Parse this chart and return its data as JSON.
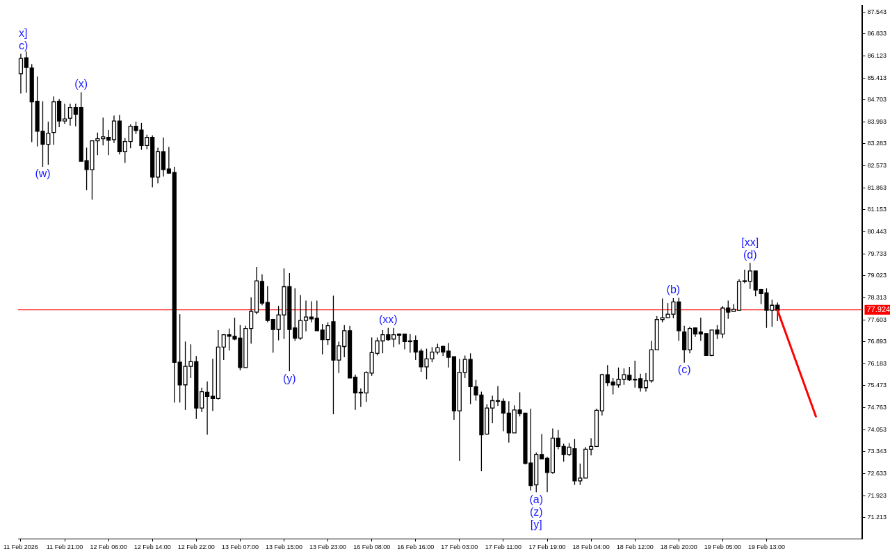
{
  "chart_data": {
    "type": "candlestick",
    "categories": [
      "11 Feb 2026",
      null,
      null,
      null,
      null,
      null,
      null,
      null,
      "11 Feb 21:00",
      null,
      null,
      null,
      null,
      null,
      null,
      null,
      "12 Feb 06:00",
      null,
      null,
      null,
      null,
      null,
      null,
      null,
      "12 Feb 14:00",
      null,
      null,
      null,
      null,
      null,
      null,
      null,
      "12 Feb 22:00",
      null,
      null,
      null,
      null,
      null,
      null,
      null,
      "13 Feb 07:00",
      null,
      null,
      null,
      null,
      null,
      null,
      null,
      "13 Feb 15:00",
      null,
      null,
      null,
      null,
      null,
      null,
      null,
      "13 Feb 23:00",
      null,
      null,
      null,
      null,
      null,
      null,
      null,
      "16 Feb 08:00",
      null,
      null,
      null,
      null,
      null,
      null,
      null,
      "16 Feb 16:00",
      null,
      null,
      null,
      null,
      null,
      null,
      null,
      "17 Feb 03:00",
      null,
      null,
      null,
      null,
      null,
      null,
      null,
      "17 Feb 11:00",
      null,
      null,
      null,
      null,
      null,
      null,
      null,
      "17 Feb 19:00",
      null,
      null,
      null,
      null,
      null,
      null,
      null,
      "18 Feb 04:00",
      null,
      null,
      null,
      null,
      null,
      null,
      null,
      "18 Feb 12:00",
      null,
      null,
      null,
      null,
      null,
      null,
      null,
      "18 Feb 20:00",
      null,
      null,
      null,
      null,
      null,
      null,
      null,
      "19 Feb 05:00",
      null,
      null,
      null,
      null,
      null,
      null,
      null,
      "19 Feb 13:00",
      null,
      null,
      null,
      null,
      null,
      null,
      null,
      null,
      null,
      null,
      null,
      null,
      null,
      null,
      null,
      null,
      null
    ],
    "ohlc": [
      [
        85.55,
        86.19,
        84.91,
        86.04
      ],
      [
        86.06,
        86.26,
        84.93,
        85.75
      ],
      [
        85.73,
        85.86,
        83.34,
        84.64
      ],
      [
        84.66,
        85.46,
        83.2,
        83.69
      ],
      [
        83.69,
        84.66,
        82.54,
        83.27
      ],
      [
        83.27,
        84.0,
        82.61,
        83.62
      ],
      [
        83.65,
        84.82,
        83.25,
        84.64
      ],
      [
        84.66,
        84.73,
        83.82,
        84.02
      ],
      [
        84.02,
        84.58,
        83.93,
        84.09
      ],
      [
        84.11,
        84.58,
        83.87,
        84.46
      ],
      [
        84.46,
        84.58,
        83.85,
        84.24
      ],
      [
        84.46,
        84.95,
        82.72,
        82.72
      ],
      [
        82.74,
        83.16,
        81.79,
        82.45
      ],
      [
        82.45,
        83.4,
        81.48,
        83.38
      ],
      [
        83.38,
        83.65,
        82.92,
        83.45
      ],
      [
        83.45,
        84.13,
        83.23,
        83.51
      ],
      [
        83.49,
        83.73,
        82.92,
        83.4
      ],
      [
        83.42,
        84.2,
        83.31,
        84.02
      ],
      [
        84.02,
        84.22,
        82.94,
        83.03
      ],
      [
        83.03,
        83.47,
        82.67,
        83.36
      ],
      [
        83.36,
        83.91,
        83.14,
        83.85
      ],
      [
        83.85,
        84.0,
        83.6,
        83.71
      ],
      [
        83.73,
        83.96,
        83.09,
        83.23
      ],
      [
        83.23,
        83.58,
        83.11,
        83.49
      ],
      [
        83.49,
        83.56,
        81.88,
        82.21
      ],
      [
        82.21,
        83.16,
        82.01,
        83.03
      ],
      [
        83.03,
        83.49,
        82.23,
        82.45
      ],
      [
        82.47,
        83.18,
        82.32,
        82.34
      ],
      [
        82.36,
        82.54,
        74.93,
        76.23
      ],
      [
        76.23,
        77.78,
        74.93,
        75.5
      ],
      [
        75.5,
        76.9,
        74.69,
        76.1
      ],
      [
        76.1,
        76.81,
        75.72,
        76.25
      ],
      [
        76.25,
        76.43,
        74.4,
        74.75
      ],
      [
        74.75,
        75.41,
        74.62,
        75.28
      ],
      [
        75.26,
        75.61,
        73.89,
        75.13
      ],
      [
        75.13,
        76.34,
        74.66,
        75.06
      ],
      [
        75.06,
        77.27,
        75.02,
        76.72
      ],
      [
        76.72,
        77.14,
        76.3,
        77.12
      ],
      [
        77.12,
        77.32,
        76.61,
        77.07
      ],
      [
        77.07,
        77.67,
        76.94,
        76.98
      ],
      [
        77.01,
        77.43,
        75.97,
        76.06
      ],
      [
        76.06,
        77.41,
        76.06,
        77.32
      ],
      [
        77.32,
        78.33,
        76.83,
        77.87
      ],
      [
        77.85,
        79.31,
        77.78,
        78.86
      ],
      [
        78.84,
        79.07,
        78.07,
        78.14
      ],
      [
        78.16,
        78.69,
        77.52,
        77.58
      ],
      [
        77.61,
        77.63,
        76.54,
        77.29
      ],
      [
        77.29,
        78.05,
        76.94,
        77.76
      ],
      [
        77.76,
        79.26,
        76.98,
        78.67
      ],
      [
        78.67,
        79.11,
        75.94,
        77.29
      ],
      [
        77.34,
        78.62,
        76.92,
        77.01
      ],
      [
        77.01,
        78.4,
        76.96,
        77.58
      ],
      [
        77.58,
        78.22,
        77.23,
        77.69
      ],
      [
        77.69,
        78.2,
        77.52,
        77.63
      ],
      [
        77.65,
        78.22,
        77.25,
        77.25
      ],
      [
        77.27,
        77.47,
        76.48,
        76.96
      ],
      [
        76.96,
        77.52,
        76.79,
        77.41
      ],
      [
        77.54,
        78.38,
        74.55,
        76.3
      ],
      [
        76.3,
        76.9,
        75.88,
        76.76
      ],
      [
        76.74,
        77.43,
        76.39,
        77.25
      ],
      [
        77.25,
        77.41,
        75.72,
        75.72
      ],
      [
        75.75,
        75.83,
        74.69,
        75.24
      ],
      [
        75.26,
        75.39,
        74.79,
        75.24
      ],
      [
        75.24,
        75.94,
        74.95,
        75.9
      ],
      [
        75.88,
        77.03,
        75.79,
        76.54
      ],
      [
        76.52,
        77.03,
        76.45,
        76.92
      ],
      [
        76.92,
        77.27,
        76.52,
        77.12
      ],
      [
        77.12,
        77.34,
        76.92,
        76.96
      ],
      [
        76.98,
        77.34,
        76.72,
        77.12
      ],
      [
        77.14,
        77.16,
        76.81,
        77.1
      ],
      [
        77.14,
        77.14,
        76.65,
        76.9
      ],
      [
        76.92,
        77.14,
        76.54,
        76.92
      ],
      [
        76.94,
        77.1,
        76.3,
        76.56
      ],
      [
        76.59,
        76.67,
        75.92,
        76.08
      ],
      [
        76.08,
        76.67,
        75.68,
        76.34
      ],
      [
        76.34,
        76.72,
        76.23,
        76.56
      ],
      [
        76.56,
        76.83,
        76.48,
        76.7
      ],
      [
        76.74,
        76.76,
        76.43,
        76.56
      ],
      [
        76.59,
        76.85,
        76.06,
        76.39
      ],
      [
        76.41,
        76.41,
        74.37,
        74.66
      ],
      [
        74.66,
        76.34,
        73.05,
        75.9
      ],
      [
        75.9,
        76.45,
        75.72,
        76.32
      ],
      [
        76.32,
        76.52,
        74.88,
        75.44
      ],
      [
        75.44,
        75.66,
        74.99,
        75.17
      ],
      [
        75.17,
        75.28,
        72.71,
        73.89
      ],
      [
        73.91,
        74.88,
        73.89,
        74.75
      ],
      [
        74.75,
        75.15,
        74.26,
        74.99
      ],
      [
        74.99,
        75.46,
        74.82,
        74.97
      ],
      [
        74.97,
        75.06,
        74.0,
        74.59
      ],
      [
        74.59,
        74.97,
        73.64,
        73.95
      ],
      [
        73.95,
        74.84,
        73.95,
        74.69
      ],
      [
        74.69,
        75.26,
        74.48,
        74.57
      ],
      [
        74.59,
        74.59,
        72.93,
        72.96
      ],
      [
        72.98,
        74.73,
        72.09,
        72.25
      ],
      [
        72.27,
        73.31,
        72.03,
        73.25
      ],
      [
        73.25,
        73.91,
        73.11,
        73.11
      ],
      [
        73.13,
        73.18,
        72.03,
        72.67
      ],
      [
        72.67,
        74.09,
        72.63,
        73.78
      ],
      [
        73.78,
        74.04,
        73.42,
        73.51
      ],
      [
        73.51,
        73.6,
        73.02,
        73.25
      ],
      [
        73.25,
        73.62,
        73.2,
        73.49
      ],
      [
        73.44,
        73.75,
        72.27,
        72.4
      ],
      [
        72.4,
        72.96,
        72.27,
        72.49
      ],
      [
        72.49,
        73.49,
        72.49,
        73.42
      ],
      [
        73.42,
        73.78,
        73.22,
        73.51
      ],
      [
        73.51,
        74.73,
        73.49,
        74.68
      ],
      [
        74.66,
        75.86,
        74.51,
        75.83
      ],
      [
        75.83,
        76.14,
        75.46,
        75.57
      ],
      [
        75.59,
        75.72,
        75.19,
        75.5
      ],
      [
        75.5,
        76.06,
        75.41,
        75.68
      ],
      [
        75.68,
        76.03,
        75.5,
        75.83
      ],
      [
        75.81,
        76.08,
        75.63,
        75.66
      ],
      [
        75.68,
        76.28,
        75.41,
        75.68
      ],
      [
        75.7,
        75.86,
        75.28,
        75.41
      ],
      [
        75.41,
        75.88,
        75.28,
        75.63
      ],
      [
        75.63,
        76.92,
        75.57,
        76.63
      ],
      [
        76.63,
        77.72,
        76.63,
        77.61
      ],
      [
        77.61,
        78.29,
        77.52,
        77.67
      ],
      [
        77.67,
        78.14,
        77.65,
        77.78
      ],
      [
        77.78,
        78.3,
        77.65,
        78.18
      ],
      [
        78.18,
        78.31,
        76.92,
        77.25
      ],
      [
        77.21,
        77.41,
        76.22,
        76.63
      ],
      [
        76.63,
        77.38,
        76.52,
        77.32
      ],
      [
        77.34,
        77.36,
        77.05,
        77.14
      ],
      [
        77.21,
        77.67,
        76.92,
        77.14
      ],
      [
        77.16,
        77.18,
        76.45,
        76.45
      ],
      [
        76.45,
        77.27,
        76.43,
        77.27
      ],
      [
        77.27,
        77.43,
        76.98,
        77.14
      ],
      [
        77.14,
        78.05,
        77.01,
        77.98
      ],
      [
        77.98,
        78.22,
        77.63,
        77.85
      ],
      [
        77.87,
        78.11,
        77.87,
        77.94
      ],
      [
        77.91,
        78.91,
        77.89,
        78.84
      ],
      [
        78.84,
        79.22,
        78.78,
        78.86
      ],
      [
        78.84,
        79.44,
        78.6,
        79.18
      ],
      [
        79.18,
        79.18,
        78.36,
        78.56
      ],
      [
        78.58,
        78.6,
        78.11,
        78.45
      ],
      [
        78.47,
        78.62,
        77.34,
        77.91
      ],
      [
        77.91,
        78.25,
        77.38,
        78.07
      ],
      [
        78.07,
        78.16,
        77.56,
        77.91
      ],
      null,
      null,
      null,
      null,
      null,
      null,
      null,
      null,
      null,
      null,
      null,
      null,
      null,
      null,
      null
    ],
    "series": [
      {
        "type": "line",
        "color": "#ff0000",
        "marker": "none",
        "values": [
          null,
          null,
          null,
          null,
          null,
          null,
          null,
          null,
          null,
          null,
          null,
          null,
          null,
          null,
          null,
          null,
          null,
          null,
          null,
          null,
          null,
          null,
          null,
          null,
          null,
          null,
          null,
          null,
          null,
          null,
          null,
          null,
          null,
          null,
          null,
          null,
          null,
          null,
          null,
          null,
          null,
          null,
          null,
          null,
          null,
          null,
          null,
          null,
          null,
          null,
          null,
          null,
          null,
          null,
          null,
          null,
          null,
          null,
          null,
          null,
          null,
          null,
          null,
          null,
          null,
          null,
          null,
          null,
          null,
          null,
          null,
          null,
          null,
          null,
          null,
          null,
          null,
          null,
          null,
          null,
          null,
          null,
          null,
          null,
          null,
          null,
          null,
          null,
          null,
          null,
          null,
          null,
          null,
          null,
          null,
          null,
          null,
          null,
          null,
          null,
          null,
          null,
          null,
          null,
          null,
          null,
          null,
          null,
          null,
          null,
          null,
          null,
          null,
          null,
          null,
          null,
          null,
          null,
          null,
          null,
          null,
          null,
          null,
          null,
          null,
          null,
          null,
          null,
          null,
          null,
          null,
          null,
          null,
          null,
          null,
          null,
          null,
          null,
          77.91,
          null,
          null,
          null,
          null,
          null,
          null,
          74.48,
          null,
          null,
          null,
          null,
          null,
          null,
          null,
          null
        ]
      }
    ],
    "ylim": [
      70.53,
      87.74
    ],
    "yticks": [
      71.213,
      71.923,
      72.633,
      73.343,
      74.053,
      74.763,
      75.473,
      76.183,
      76.893,
      77.603,
      78.313,
      79.023,
      79.733,
      80.443,
      81.153,
      81.863,
      82.573,
      83.283,
      83.993,
      84.703,
      85.413,
      86.123,
      86.833,
      87.543
    ],
    "ref_lines": [
      {
        "axis": "y",
        "value": 77.924,
        "label": "77.924",
        "color": "#ff0000"
      }
    ],
    "annotations": [
      {
        "text": "x]",
        "x": "11 Feb 2026",
        "y": 86.19
      },
      {
        "text": "c)",
        "x": "11 Feb 2026",
        "y": 86.19
      },
      {
        "text": "(w)",
        "y": 82.54
      },
      {
        "text": "(x)",
        "y": 84.95
      },
      {
        "text": "(y)",
        "y": 75.94
      },
      {
        "text": "(xx)",
        "y": 77.34
      },
      {
        "text": "(a)",
        "y": 72.03
      },
      {
        "text": "(z)",
        "y": 72.03
      },
      {
        "text": "[y]",
        "y": 72.03
      },
      {
        "text": "(b)",
        "y": 78.3
      },
      {
        "text": "(c)",
        "y": 76.22
      },
      {
        "text": "[xx]",
        "y": 79.44
      },
      {
        "text": "(d)",
        "y": 79.44
      }
    ]
  }
}
